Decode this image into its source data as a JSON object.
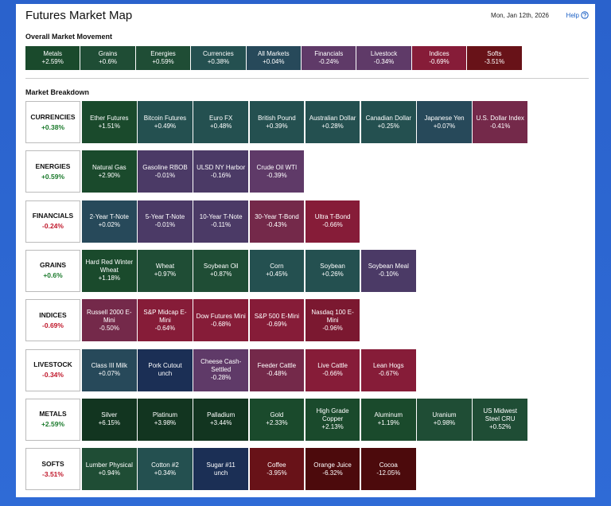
{
  "header": {
    "title": "Futures Market Map",
    "date": "Mon, Jan 12th, 2026",
    "help": "Help"
  },
  "overall": {
    "title": "Overall Market Movement",
    "tiles": [
      {
        "name": "Metals",
        "change": "+2.59%"
      },
      {
        "name": "Grains",
        "change": "+0.6%"
      },
      {
        "name": "Energies",
        "change": "+0.59%"
      },
      {
        "name": "Currencies",
        "change": "+0.38%"
      },
      {
        "name": "All Markets",
        "change": "+0.04%"
      },
      {
        "name": "Financials",
        "change": "-0.24%"
      },
      {
        "name": "Livestock",
        "change": "-0.34%"
      },
      {
        "name": "Indices",
        "change": "-0.69%"
      },
      {
        "name": "Softs",
        "change": "-3.51%"
      }
    ]
  },
  "breakdown": {
    "title": "Market Breakdown",
    "groups": [
      {
        "name": "CURRENCIES",
        "change": "+0.38%",
        "items": [
          {
            "name": "Ether Futures",
            "change": "+1.51%"
          },
          {
            "name": "Bitcoin Futures",
            "change": "+0.49%"
          },
          {
            "name": "Euro FX",
            "change": "+0.48%"
          },
          {
            "name": "British Pound",
            "change": "+0.39%"
          },
          {
            "name": "Australian Dollar",
            "change": "+0.28%"
          },
          {
            "name": "Canadian Dollar",
            "change": "+0.25%"
          },
          {
            "name": "Japanese Yen",
            "change": "+0.07%"
          },
          {
            "name": "U.S. Dollar Index",
            "change": "-0.41%"
          }
        ]
      },
      {
        "name": "ENERGIES",
        "change": "+0.59%",
        "items": [
          {
            "name": "Natural Gas",
            "change": "+2.90%"
          },
          {
            "name": "Gasoline RBOB",
            "change": "-0.01%"
          },
          {
            "name": "ULSD NY Harbor",
            "change": "-0.16%"
          },
          {
            "name": "Crude Oil WTI",
            "change": "-0.39%"
          }
        ]
      },
      {
        "name": "FINANCIALS",
        "change": "-0.24%",
        "items": [
          {
            "name": "2-Year T-Note",
            "change": "+0.02%"
          },
          {
            "name": "5-Year T-Note",
            "change": "-0.01%"
          },
          {
            "name": "10-Year T-Note",
            "change": "-0.11%"
          },
          {
            "name": "30-Year T-Bond",
            "change": "-0.43%"
          },
          {
            "name": "Ultra T-Bond",
            "change": "-0.66%"
          }
        ]
      },
      {
        "name": "GRAINS",
        "change": "+0.6%",
        "items": [
          {
            "name": "Hard Red Winter Wheat",
            "change": "+1.18%"
          },
          {
            "name": "Wheat",
            "change": "+0.97%"
          },
          {
            "name": "Soybean Oil",
            "change": "+0.87%"
          },
          {
            "name": "Corn",
            "change": "+0.45%"
          },
          {
            "name": "Soybean",
            "change": "+0.26%"
          },
          {
            "name": "Soybean Meal",
            "change": "-0.10%"
          }
        ]
      },
      {
        "name": "INDICES",
        "change": "-0.69%",
        "items": [
          {
            "name": "Russell 2000 E-Mini",
            "change": "-0.50%"
          },
          {
            "name": "S&P Midcap E-Mini",
            "change": "-0.64%"
          },
          {
            "name": "Dow Futures Mini",
            "change": "-0.68%"
          },
          {
            "name": "S&P 500 E-Mini",
            "change": "-0.69%"
          },
          {
            "name": "Nasdaq 100 E-Mini",
            "change": "-0.96%"
          }
        ]
      },
      {
        "name": "LIVESTOCK",
        "change": "-0.34%",
        "items": [
          {
            "name": "Class III Milk",
            "change": "+0.07%"
          },
          {
            "name": "Pork Cutout",
            "change": "unch"
          },
          {
            "name": "Cheese Cash-Settled",
            "change": "-0.28%"
          },
          {
            "name": "Feeder Cattle",
            "change": "-0.48%"
          },
          {
            "name": "Live Cattle",
            "change": "-0.66%"
          },
          {
            "name": "Lean Hogs",
            "change": "-0.67%"
          }
        ]
      },
      {
        "name": "METALS",
        "change": "+2.59%",
        "items": [
          {
            "name": "Silver",
            "change": "+6.15%"
          },
          {
            "name": "Platinum",
            "change": "+3.98%"
          },
          {
            "name": "Palladium",
            "change": "+3.44%"
          },
          {
            "name": "Gold",
            "change": "+2.33%"
          },
          {
            "name": "High Grade Copper",
            "change": "+2.13%"
          },
          {
            "name": "Aluminum",
            "change": "+1.19%"
          },
          {
            "name": "Uranium",
            "change": "+0.98%"
          },
          {
            "name": "US Midwest Steel CRU",
            "change": "+0.52%"
          }
        ]
      },
      {
        "name": "SOFTS",
        "change": "-3.51%",
        "items": [
          {
            "name": "Lumber Physical",
            "change": "+0.94%"
          },
          {
            "name": "Cotton #2",
            "change": "+0.34%"
          },
          {
            "name": "Sugar #11",
            "change": "unch"
          },
          {
            "name": "Coffee",
            "change": "-3.95%"
          },
          {
            "name": "Orange Juice",
            "change": "-6.32%"
          },
          {
            "name": "Cocoa",
            "change": "-12.05%"
          }
        ]
      }
    ]
  }
}
